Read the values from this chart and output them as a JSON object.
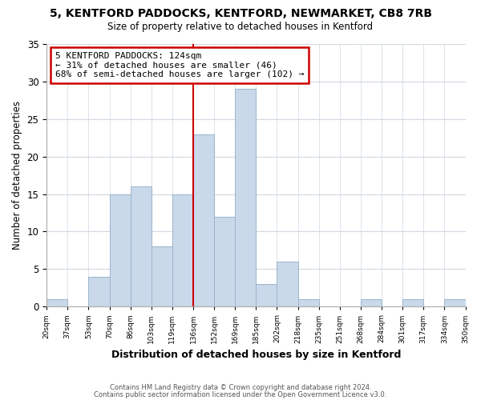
{
  "title": "5, KENTFORD PADDOCKS, KENTFORD, NEWMARKET, CB8 7RB",
  "subtitle": "Size of property relative to detached houses in Kentford",
  "xlabel": "Distribution of detached houses by size in Kentford",
  "ylabel": "Number of detached properties",
  "footer1": "Contains HM Land Registry data © Crown copyright and database right 2024.",
  "footer2": "Contains public sector information licensed under the Open Government Licence v3.0.",
  "bin_labels": [
    "20sqm",
    "37sqm",
    "53sqm",
    "70sqm",
    "86sqm",
    "103sqm",
    "119sqm",
    "136sqm",
    "152sqm",
    "169sqm",
    "185sqm",
    "202sqm",
    "218sqm",
    "235sqm",
    "251sqm",
    "268sqm",
    "284sqm",
    "301sqm",
    "317sqm",
    "334sqm",
    "350sqm"
  ],
  "bar_values": [
    1,
    0,
    4,
    15,
    16,
    8,
    15,
    23,
    12,
    29,
    3,
    6,
    1,
    0,
    0,
    1,
    0,
    1,
    0,
    1
  ],
  "bar_color": "#c9d9e9",
  "bar_edge_color": "#9ab4cc",
  "vline_x_index": 7,
  "vline_color": "#cc0000",
  "annotation_text": "5 KENTFORD PADDOCKS: 124sqm\n← 31% of detached houses are smaller (46)\n68% of semi-detached houses are larger (102) →",
  "annotation_box_color": "white",
  "annotation_box_edge_color": "#cc0000",
  "ylim": [
    0,
    35
  ],
  "yticks": [
    0,
    5,
    10,
    15,
    20,
    25,
    30,
    35
  ],
  "background_color": "white",
  "grid_color": "#d0d8e0"
}
